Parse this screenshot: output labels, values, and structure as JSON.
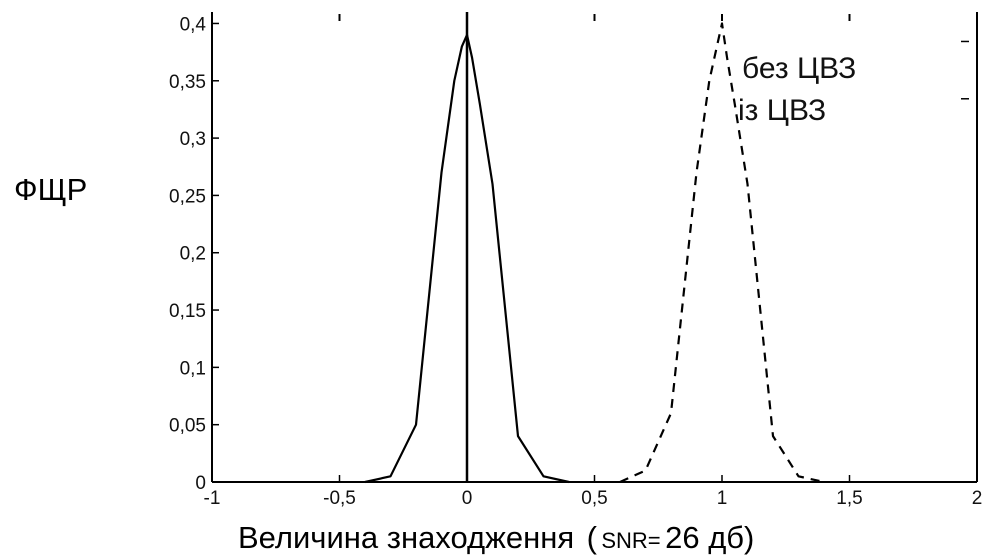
{
  "chart_data": {
    "type": "line",
    "title": "",
    "xlabel_main": "Величина знаходження",
    "xlabel_paren_open": "(",
    "xlabel_snr": "SNR=",
    "xlabel_value": " 26 дб)",
    "ylabel": "ФЩР",
    "xlim": [
      -1,
      2
    ],
    "ylim": [
      0,
      0.41
    ],
    "xticks": [
      -1,
      -0.5,
      0,
      0.5,
      1,
      1.5,
      2
    ],
    "xtick_labels": [
      "-1",
      "-0,5",
      "0",
      "0,5",
      "1",
      "1,5",
      "2"
    ],
    "yticks": [
      0,
      0.05,
      0.1,
      0.15,
      0.2,
      0.25,
      0.3,
      0.35,
      0.4
    ],
    "ytick_labels": [
      "0",
      "0,05",
      "0,1",
      "0,15",
      "0,2",
      "0,25",
      "0,3",
      "0,35",
      "0,4"
    ],
    "grid": false,
    "legend_position": "top-right",
    "series": [
      {
        "name": "без ЦВЗ",
        "style": "solid",
        "color": "#000000",
        "x": [
          -0.4,
          -0.3,
          -0.2,
          -0.1,
          -0.05,
          -0.02,
          0,
          0.02,
          0.05,
          0.1,
          0.2,
          0.3,
          0.4
        ],
        "y": [
          0,
          0.005,
          0.05,
          0.27,
          0.35,
          0.38,
          0.39,
          0.37,
          0.33,
          0.26,
          0.04,
          0.005,
          0
        ]
      },
      {
        "name": "із ЦВЗ",
        "style": "dashed",
        "color": "#000000",
        "x": [
          0.6,
          0.7,
          0.8,
          0.9,
          0.95,
          0.98,
          1.0,
          1.02,
          1.05,
          1.1,
          1.2,
          1.3,
          1.4
        ],
        "y": [
          0,
          0.01,
          0.06,
          0.27,
          0.35,
          0.38,
          0.4,
          0.37,
          0.33,
          0.26,
          0.04,
          0.005,
          0
        ]
      }
    ]
  }
}
